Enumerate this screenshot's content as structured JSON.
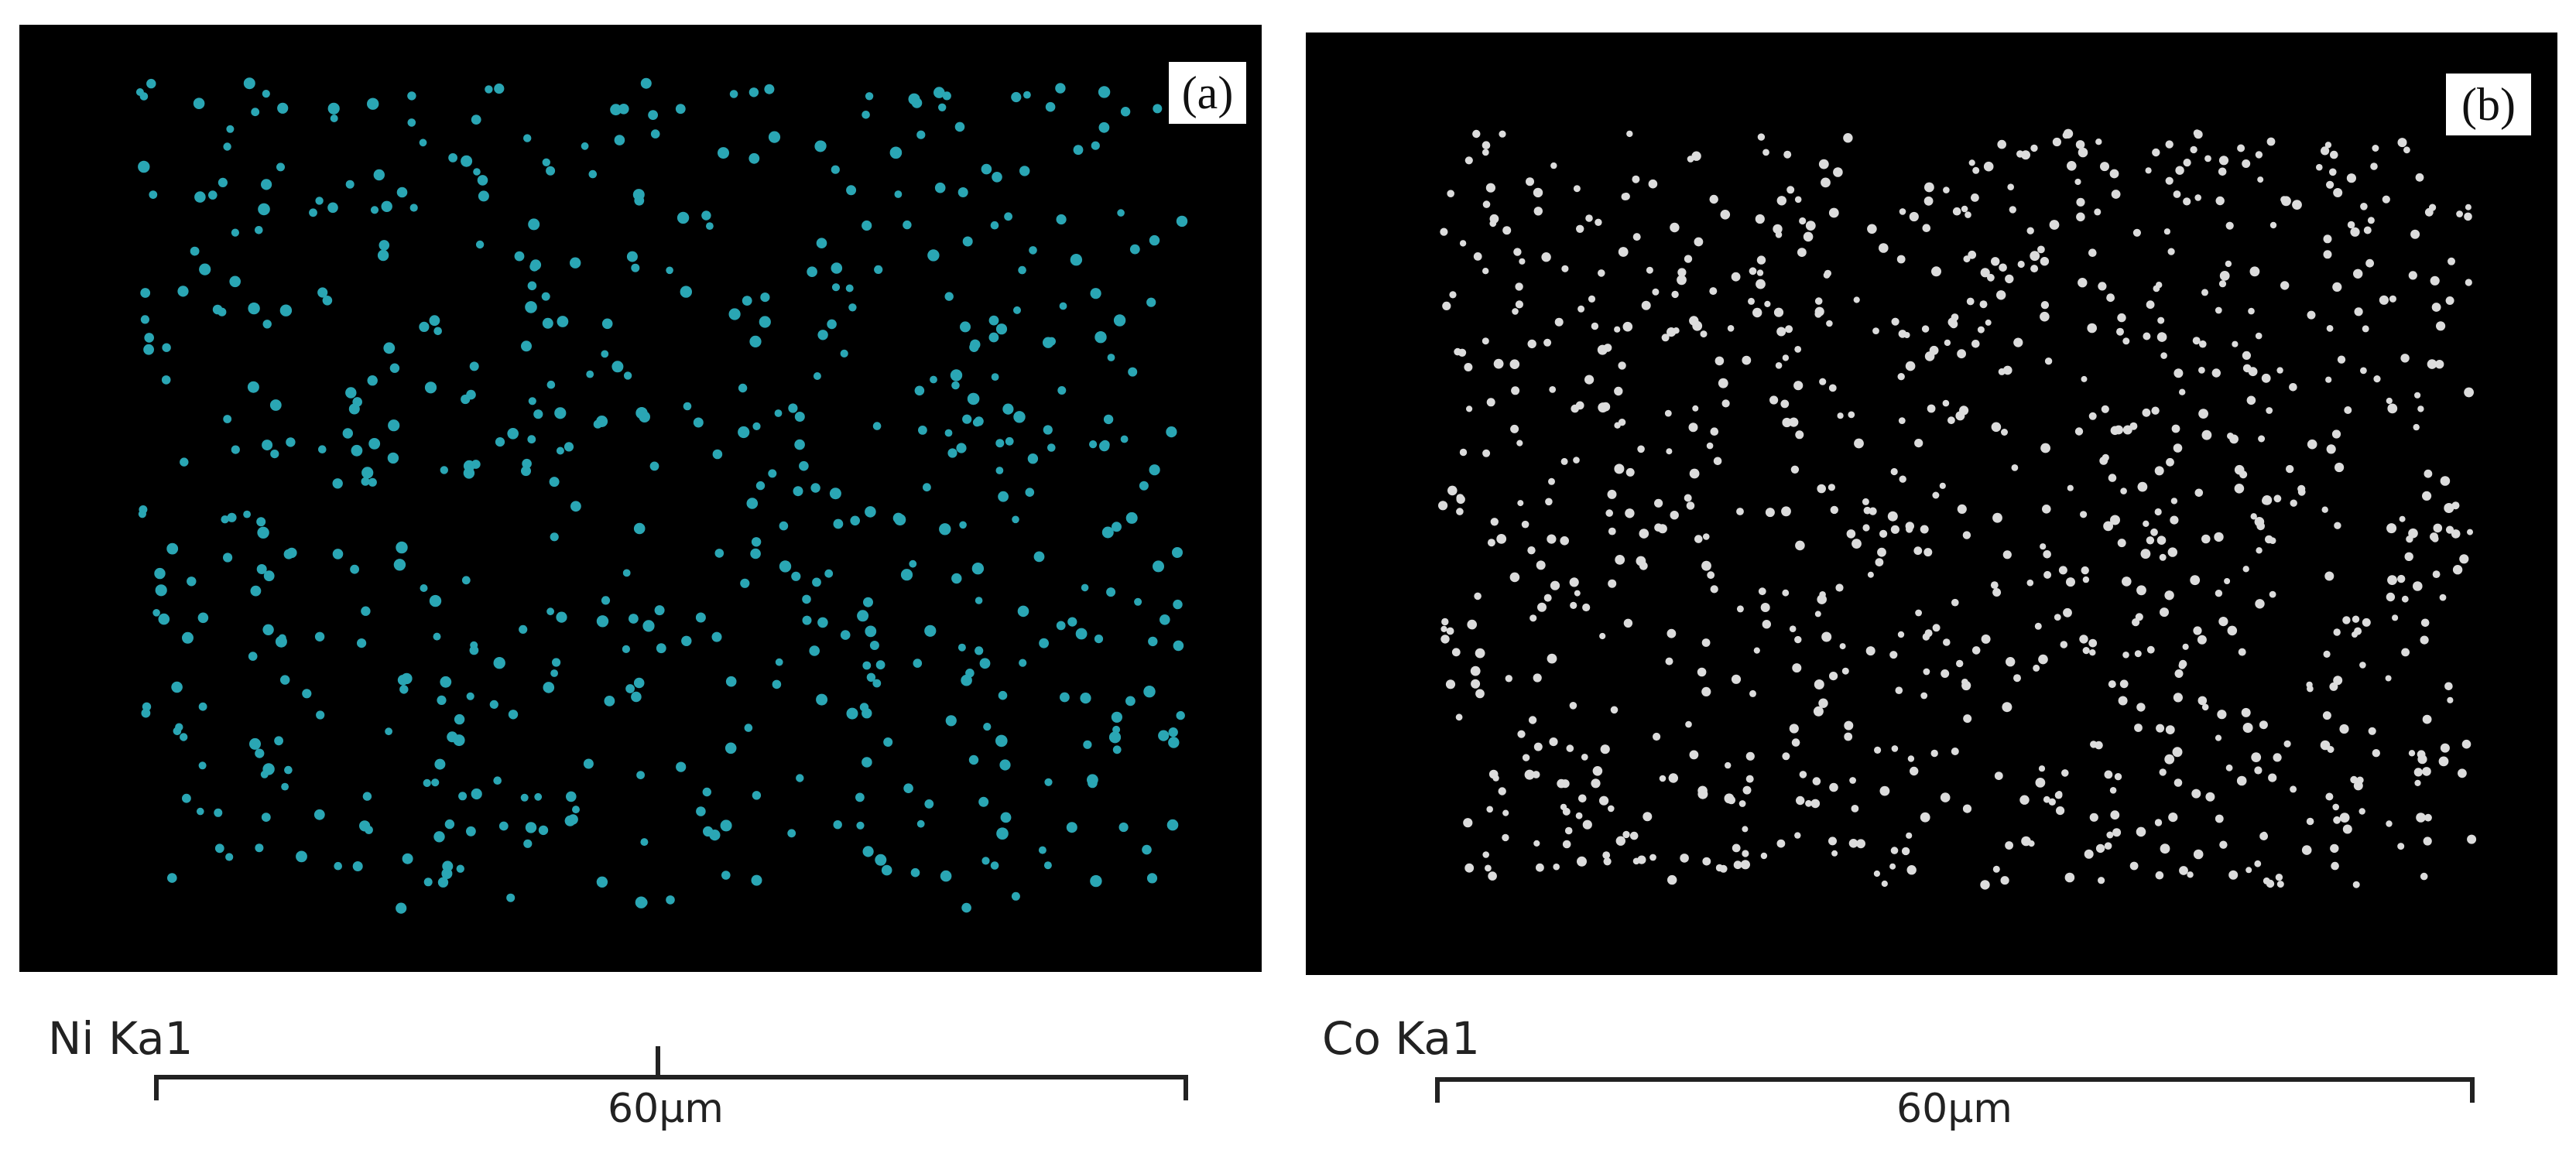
{
  "panels": [
    {
      "label": "(a)",
      "element": "Ni Ka1",
      "scale_bar": "60μm"
    },
    {
      "label": "(b)",
      "element": "Co Ka1",
      "scale_bar": "60μm"
    }
  ]
}
